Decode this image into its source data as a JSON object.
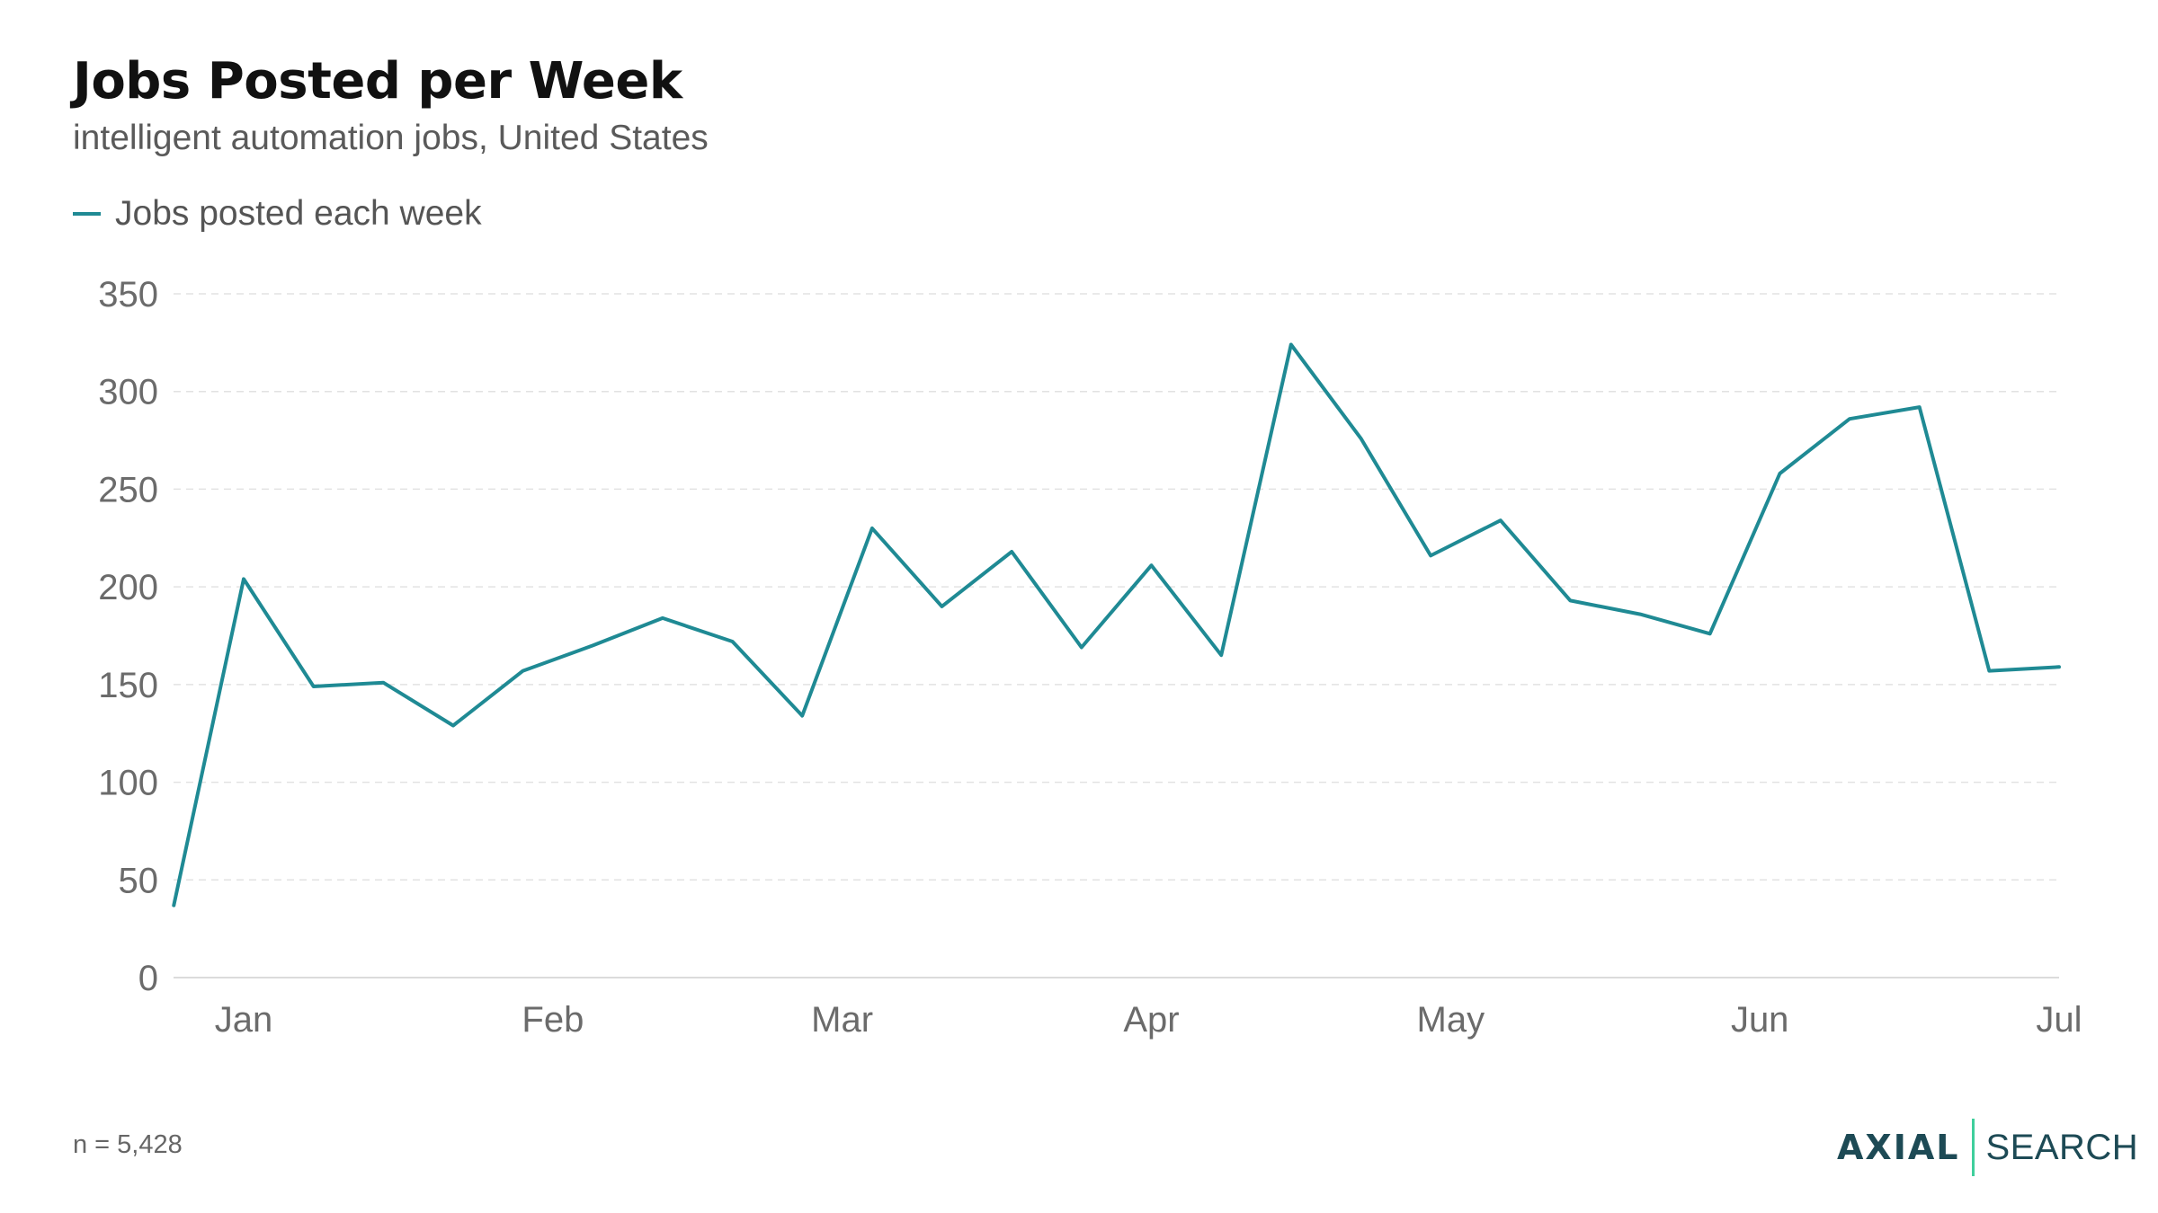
{
  "header": {
    "title": "Jobs Posted per Week",
    "subtitle": "intelligent automation jobs, United States"
  },
  "footer": {
    "note": "n = 5,428",
    "brand_logo": "AXIAL",
    "brand_product": "SEARCH"
  },
  "colors": {
    "line": "#1f8a94",
    "grid": "#e2e2e2",
    "axis_text": "#6b6b6b",
    "brand_divider": "#3fcf9c"
  },
  "chart_data": {
    "type": "line",
    "title": "Jobs Posted per Week",
    "subtitle": "intelligent automation jobs, United States",
    "xlabel": "",
    "ylabel": "",
    "legend_position": "top-left",
    "grid": "horizontal dashed",
    "ylim": [
      0,
      350
    ],
    "yticks": [
      0,
      50,
      100,
      150,
      200,
      250,
      300,
      350
    ],
    "xlim": [
      "2024-01-01",
      "2024-07-01"
    ],
    "xticks": [
      {
        "date": "2024-01-01",
        "label": "Jan"
      },
      {
        "date": "2024-02-01",
        "label": "Feb"
      },
      {
        "date": "2024-03-01",
        "label": "Mar"
      },
      {
        "date": "2024-04-01",
        "label": "Apr"
      },
      {
        "date": "2024-05-01",
        "label": "May"
      },
      {
        "date": "2024-06-01",
        "label": "Jun"
      },
      {
        "date": "2024-07-01",
        "label": "Jul"
      }
    ],
    "series": [
      {
        "name": "Jobs posted each week",
        "color": "#1f8a94",
        "points": [
          {
            "x": "2023-12-25",
            "y": 37
          },
          {
            "x": "2024-01-01",
            "y": 204
          },
          {
            "x": "2024-01-08",
            "y": 149
          },
          {
            "x": "2024-01-15",
            "y": 151
          },
          {
            "x": "2024-01-22",
            "y": 129
          },
          {
            "x": "2024-01-29",
            "y": 157
          },
          {
            "x": "2024-02-05",
            "y": 170
          },
          {
            "x": "2024-02-12",
            "y": 184
          },
          {
            "x": "2024-02-19",
            "y": 172
          },
          {
            "x": "2024-02-26",
            "y": 134
          },
          {
            "x": "2024-03-04",
            "y": 230
          },
          {
            "x": "2024-03-11",
            "y": 190
          },
          {
            "x": "2024-03-18",
            "y": 218
          },
          {
            "x": "2024-03-25",
            "y": 169
          },
          {
            "x": "2024-04-01",
            "y": 211
          },
          {
            "x": "2024-04-08",
            "y": 165
          },
          {
            "x": "2024-04-15",
            "y": 324
          },
          {
            "x": "2024-04-22",
            "y": 276
          },
          {
            "x": "2024-04-29",
            "y": 216
          },
          {
            "x": "2024-05-06",
            "y": 234
          },
          {
            "x": "2024-05-13",
            "y": 193
          },
          {
            "x": "2024-05-20",
            "y": 186
          },
          {
            "x": "2024-05-27",
            "y": 176
          },
          {
            "x": "2024-06-03",
            "y": 258
          },
          {
            "x": "2024-06-10",
            "y": 286
          },
          {
            "x": "2024-06-17",
            "y": 292
          },
          {
            "x": "2024-06-24",
            "y": 157
          },
          {
            "x": "2024-07-01",
            "y": 159
          }
        ]
      }
    ]
  }
}
